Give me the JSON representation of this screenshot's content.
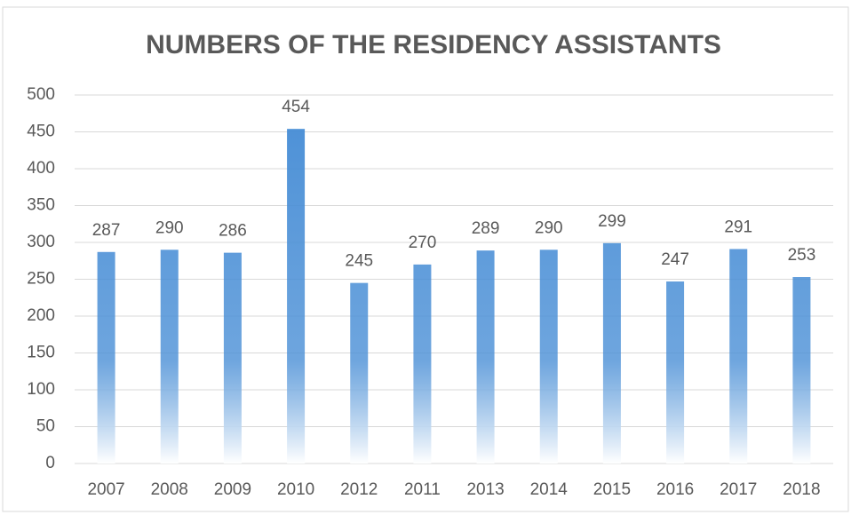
{
  "chart_data": {
    "type": "bar",
    "title": "NUMBERS OF THE RESIDENCY ASSISTANTS",
    "categories": [
      "2007",
      "2008",
      "2009",
      "2010",
      "2012",
      "2011",
      "2013",
      "2014",
      "2015",
      "2016",
      "2017",
      "2018"
    ],
    "values": [
      287,
      290,
      286,
      454,
      245,
      270,
      289,
      290,
      299,
      247,
      291,
      253
    ],
    "color": "#4a8fd6",
    "ylim": [
      0,
      500
    ],
    "yticks": [
      0,
      50,
      100,
      150,
      200,
      250,
      300,
      350,
      400,
      450,
      500
    ],
    "grid": true
  }
}
